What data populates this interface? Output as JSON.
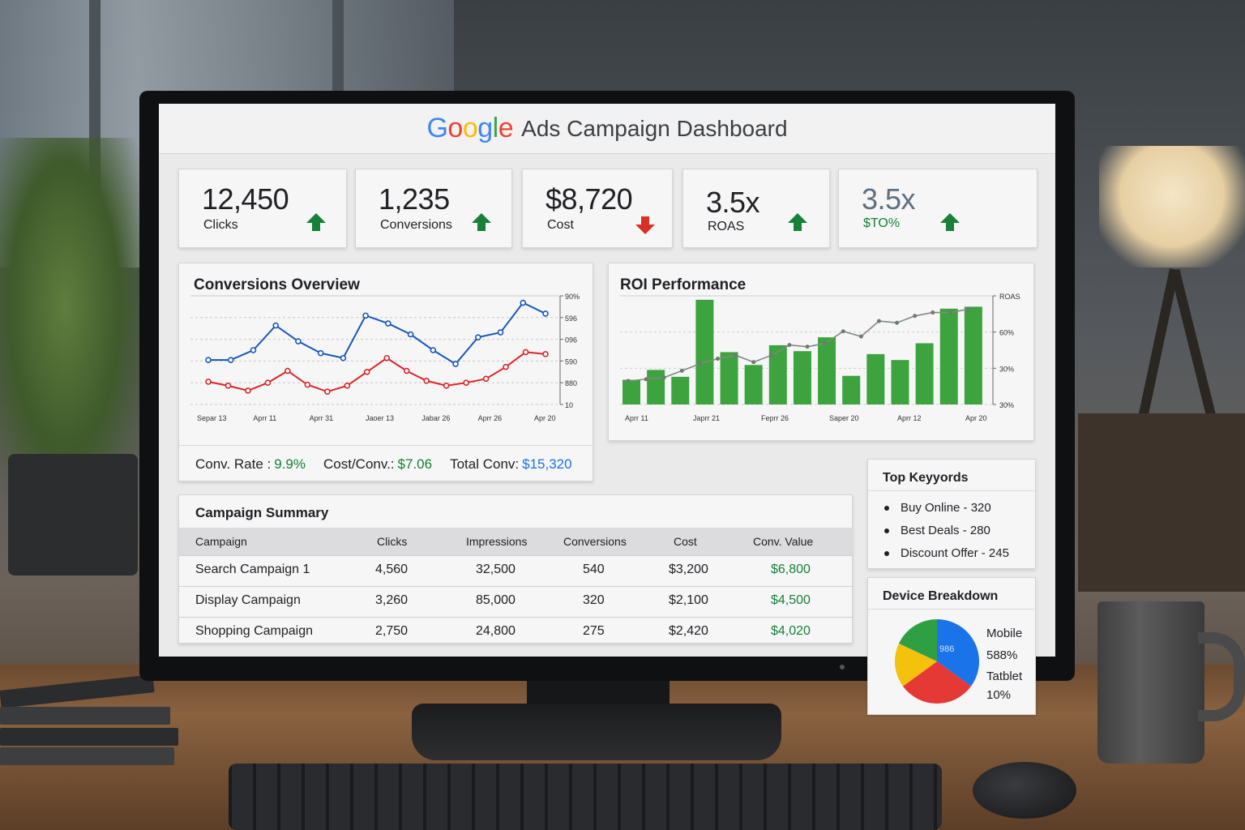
{
  "header": {
    "logo_letters": [
      "G",
      "o",
      "o",
      "g",
      "l",
      "e"
    ],
    "logo_colors": [
      "#4285F4",
      "#EA4335",
      "#FBBC05",
      "#4285F4",
      "#34A853",
      "#EA4335"
    ],
    "title": "Ads Campaign Dashboard"
  },
  "kpis": [
    {
      "value": "12,450",
      "label": "Clicks",
      "trend": "up"
    },
    {
      "value": "1,235",
      "label": "Conversions",
      "trend": "up"
    },
    {
      "value": "$8,720",
      "label": "Cost",
      "trend": "down"
    },
    {
      "value": "3.5x",
      "label": "ROAS",
      "trend": "up"
    },
    {
      "value": "3.5x",
      "label": "$TO%",
      "trend": "up"
    }
  ],
  "colors": {
    "up": "#188038",
    "down": "#d93025",
    "blue": "#1a57b8",
    "red": "#d9262b",
    "green": "#3da33f",
    "link_blue": "#1a73e8",
    "value_green": "#188038"
  },
  "conversions_overview": {
    "title": "Conversions Overview",
    "stats": [
      {
        "label": "Conv. Rate :",
        "value": "9.9%"
      },
      {
        "label": "Cost/Conv.:",
        "value": "$7.06"
      },
      {
        "label": "Total Conv:",
        "value": "$15,320"
      }
    ]
  },
  "roi_performance": {
    "title": "ROI Performance"
  },
  "chart_data": [
    {
      "type": "line",
      "title": "Conversions Overview",
      "x_tick_labels": [
        "Separ 13",
        "Aprr 11",
        "Aprr 31",
        "Jaoer 13",
        "Jabar 26",
        "Aprr 26",
        "Apr 20"
      ],
      "y_tick_labels": [
        "90%",
        "596",
        "096",
        "590",
        "880",
        "10"
      ],
      "series": [
        {
          "values": [
            455,
            455,
            445,
            420,
            436,
            448,
            453,
            410,
            418,
            429,
            445,
            459,
            432,
            427,
            397,
            408
          ]
        },
        {
          "values": [
            477,
            481,
            486,
            478,
            466,
            480,
            487,
            481,
            467,
            453,
            466,
            476,
            481,
            478,
            474,
            462,
            447,
            449
          ]
        }
      ]
    },
    {
      "type": "bar",
      "title": "ROI Performance",
      "x_tick_labels": [
        "Aprr 11",
        "Japrr 21",
        "Feprr 26",
        "Saper 20",
        "Aprr 12",
        "Apr 20"
      ],
      "y_tick_labels": [
        "ROAS",
        "60%",
        "30%",
        "30%"
      ],
      "values": [
        25,
        35,
        28,
        106,
        53,
        40,
        60,
        54,
        68,
        29,
        51,
        45,
        62,
        97,
        99
      ],
      "line_values": [
        0.9,
        1.0,
        1.1,
        1.5,
        1.9,
        2.2,
        2.4,
        2.0,
        2.4,
        3.0,
        2.9,
        3.1,
        3.8,
        3.5,
        4.4,
        4.3,
        4.7,
        4.9,
        4.9,
        5.1
      ]
    },
    {
      "type": "pie",
      "title": "Device Breakdown",
      "slices": [
        {
          "label": "Mobile",
          "value": 35,
          "color": "#1a73e8"
        },
        {
          "label": "",
          "value": 30,
          "color": "#e53935"
        },
        {
          "label": "",
          "value": 17,
          "color": "#f4c20d"
        },
        {
          "label": "",
          "value": 18,
          "color": "#2ea043"
        }
      ],
      "center_label": "986"
    }
  ],
  "campaign_summary": {
    "title": "Campaign Summary",
    "columns": [
      "Campaign",
      "Clicks",
      "Impressions",
      "Conversions",
      "Cost",
      "Conv. Value"
    ],
    "rows": [
      [
        "Search Campaign 1",
        "4,560",
        "32,500",
        "540",
        "$3,200",
        "$6,800"
      ],
      [
        "Display Campaign",
        "3,260",
        "85,000",
        "320",
        "$2,100",
        "$4,500"
      ],
      [
        "Shopping Campaign",
        "2,750",
        "24,800",
        "275",
        "$2,420",
        "$4,020"
      ]
    ]
  },
  "top_keywords": {
    "title": "Top Keyyords",
    "items": [
      "Buy Online - 320",
      "Best Deals - 280",
      "Discount Offer - 245"
    ]
  },
  "device_breakdown": {
    "title": "Device Breakdown",
    "labels": [
      "Mobile",
      "588%",
      "Tatblet",
      "10%"
    ]
  }
}
